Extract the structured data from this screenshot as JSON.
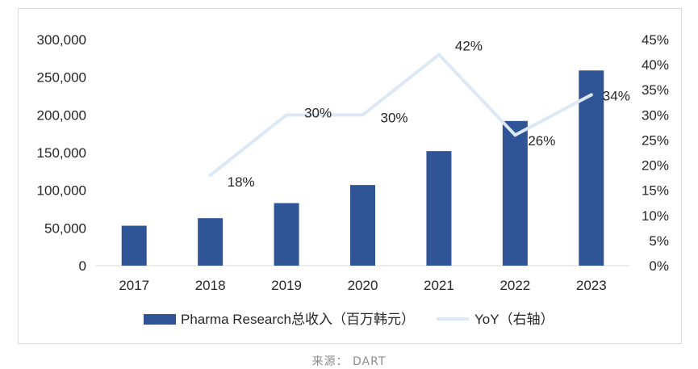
{
  "chart_data": {
    "type": "bar",
    "categories": [
      "2017",
      "2018",
      "2019",
      "2020",
      "2021",
      "2022",
      "2023"
    ],
    "series": [
      {
        "name": "Pharma Research总收入（百万韩元）",
        "type": "bar",
        "axis": "left",
        "color": "#2f5597",
        "values": [
          53000,
          63000,
          83000,
          107000,
          152000,
          192000,
          259000
        ]
      },
      {
        "name": "YoY（右轴）",
        "type": "line",
        "axis": "right",
        "color": "#dde8f5",
        "values": [
          null,
          18,
          30,
          30,
          42,
          26,
          34
        ],
        "labels": [
          "",
          "18%",
          "30%",
          "30%",
          "42%",
          "26%",
          "34%"
        ]
      }
    ],
    "y_left": {
      "range": [
        0,
        300000
      ],
      "ticks": [
        "0",
        "50,000",
        "100,000",
        "150,000",
        "200,000",
        "250,000",
        "300,000"
      ]
    },
    "y_right": {
      "range": [
        0,
        45
      ],
      "ticks": [
        "0%",
        "5%",
        "10%",
        "15%",
        "20%",
        "25%",
        "30%",
        "35%",
        "40%",
        "45%"
      ]
    },
    "grid": false,
    "legend_position": "bottom"
  },
  "source": "来源：  DART"
}
